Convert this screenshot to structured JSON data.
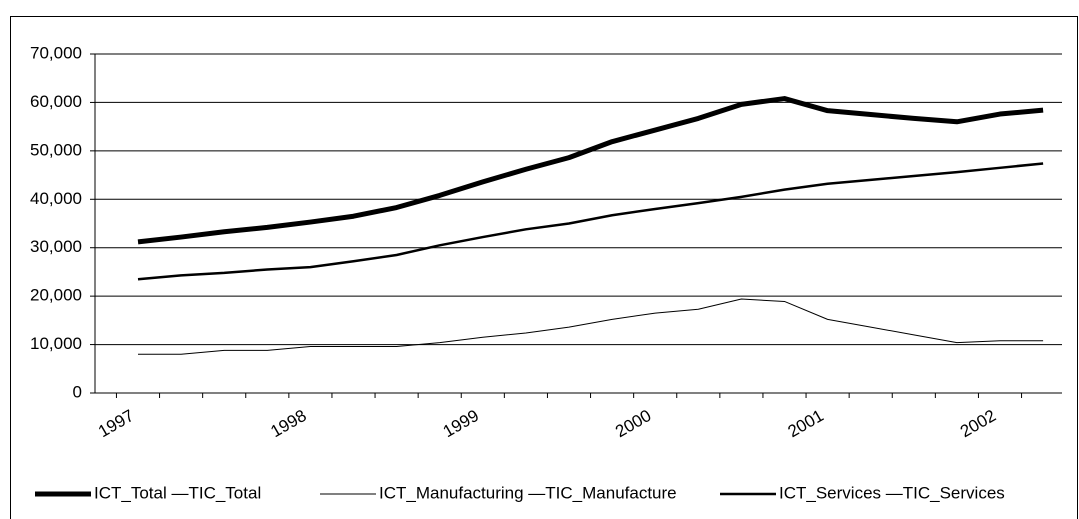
{
  "chart_data": {
    "type": "line",
    "categories": [
      "1997",
      null,
      null,
      null,
      "1998",
      null,
      null,
      null,
      "1999",
      null,
      null,
      null,
      "2000",
      null,
      null,
      null,
      "2001",
      null,
      null,
      null,
      "2002",
      null
    ],
    "series": [
      {
        "name": "ICT_Total —TIC_Total",
        "color": "#000000",
        "line_width": 5,
        "values": [
          31200,
          32200,
          33300,
          34200,
          35300,
          36500,
          38300,
          40800,
          43600,
          46200,
          48600,
          51900,
          54300,
          56700,
          59600,
          60800,
          58300,
          57500,
          56700,
          56000,
          57600,
          58400
        ]
      },
      {
        "name": "ICT_Manufacturing —TIC_Manufacture",
        "color": "#000000",
        "line_width": 1,
        "values": [
          8000,
          8000,
          8800,
          8800,
          9600,
          9600,
          9600,
          10400,
          11500,
          12400,
          13600,
          15200,
          16500,
          17300,
          19400,
          18900,
          15200,
          13600,
          12000,
          10400,
          10800,
          10800
        ]
      },
      {
        "name": "ICT_Services —TIC_Services",
        "color": "#000000",
        "line_width": 2.5,
        "values": [
          23500,
          24300,
          24800,
          25500,
          26000,
          27200,
          28500,
          30500,
          32200,
          33800,
          35000,
          36700,
          38000,
          39200,
          40500,
          42000,
          43200,
          44000,
          44800,
          45600,
          46500,
          47400
        ]
      }
    ],
    "ylim": [
      0,
      70000
    ],
    "yticks": [
      0,
      {
        "value": 10000,
        "label": "10,000"
      },
      {
        "value": 20000,
        "label": "20,000"
      },
      {
        "value": 30000,
        "label": "30,000"
      },
      {
        "value": 40000,
        "label": "40,000"
      },
      {
        "value": 50000,
        "label": "50,000"
      },
      {
        "value": 60000,
        "label": "60,000"
      },
      {
        "value": 70000,
        "label": "70,000"
      }
    ],
    "grid": true,
    "legend": "bottom"
  }
}
